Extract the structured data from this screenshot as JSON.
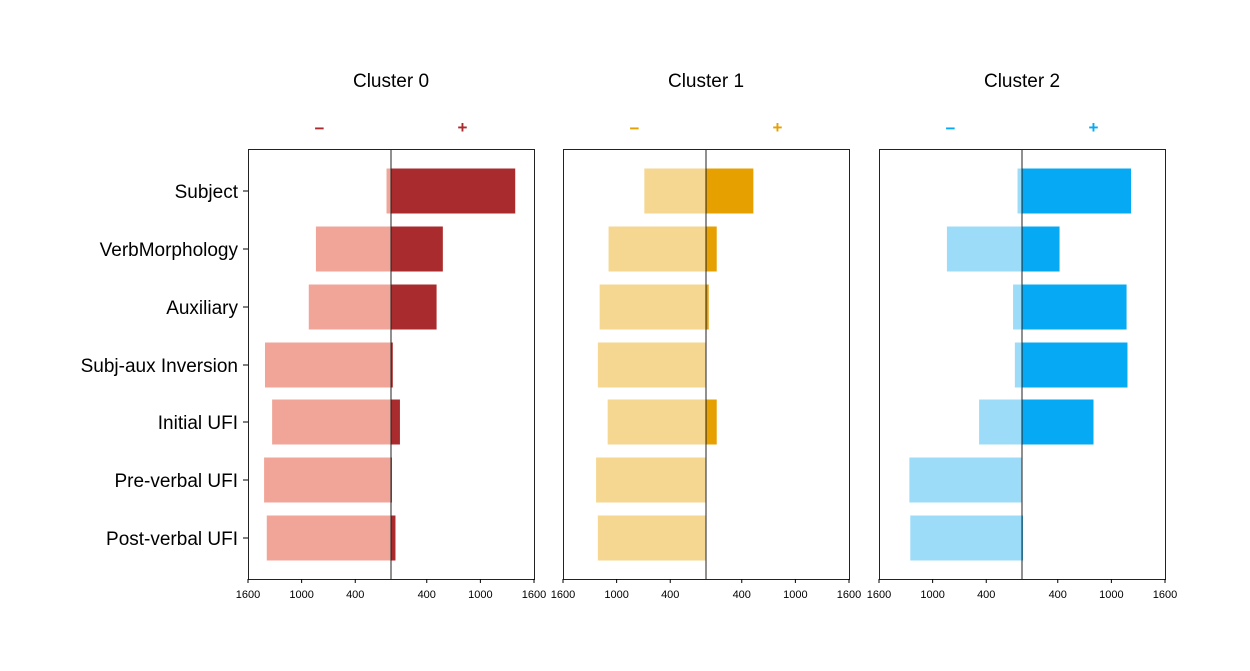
{
  "chart_data": {
    "type": "bar",
    "orientation": "horizontal-diverging",
    "categories": [
      "Subject",
      "VerbMorphology",
      "Auxiliary",
      "Subj-aux Inversion",
      "Initial UFI",
      "Pre-verbal UFI",
      "Post-verbal UFI"
    ],
    "x_ticks": [
      -1600,
      -1000,
      -400,
      400,
      1000,
      1600
    ],
    "x_tick_labels": [
      "1600",
      "1000",
      "400",
      "400",
      "1000",
      "1600"
    ],
    "xlim": [
      -1600,
      1600
    ],
    "panels": [
      {
        "title": "Cluster 0",
        "neg_label": "−",
        "pos_label": "+",
        "neg_color": "#f1a598",
        "pos_color": "#aa2b2d",
        "series": [
          {
            "sign": "negative",
            "values": [
              -50,
              -840,
              -920,
              -1410,
              -1330,
              -1420,
              -1390
            ]
          },
          {
            "sign": "positive",
            "values": [
              1390,
              580,
              510,
              20,
              100,
              10,
              50
            ]
          }
        ]
      },
      {
        "title": "Cluster 1",
        "neg_label": "−",
        "pos_label": "+",
        "neg_color": "#f6d791",
        "pos_color": "#e6a000",
        "series": [
          {
            "sign": "negative",
            "values": [
              -690,
              -1090,
              -1190,
              -1210,
              -1100,
              -1230,
              -1210
            ]
          },
          {
            "sign": "positive",
            "values": [
              530,
              120,
              30,
              0,
              120,
              0,
              0
            ]
          }
        ]
      },
      {
        "title": "Cluster 2",
        "neg_label": "−",
        "pos_label": "+",
        "neg_color": "#9cdcf8",
        "pos_color": "#05a9f4",
        "series": [
          {
            "sign": "negative",
            "values": [
              -50,
              -840,
              -100,
              -80,
              -480,
              -1260,
              -1250
            ]
          },
          {
            "sign": "positive",
            "values": [
              1220,
              420,
              1170,
              1180,
              800,
              0,
              10
            ]
          }
        ]
      }
    ]
  }
}
